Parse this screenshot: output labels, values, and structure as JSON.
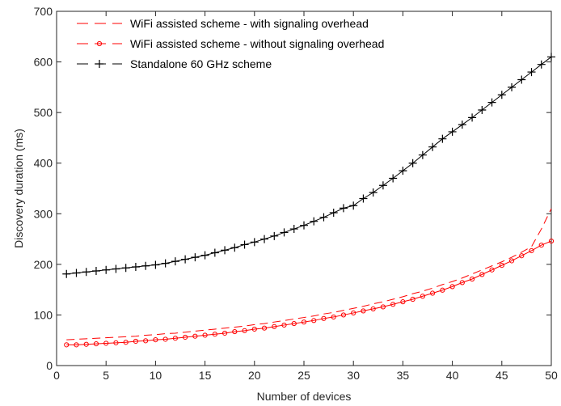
{
  "chart_data": {
    "type": "line",
    "xlabel": "Number of devices",
    "ylabel": "Discovery duration (ms)",
    "xlim": [
      0,
      50
    ],
    "ylim": [
      0,
      700
    ],
    "xticks": [
      0,
      5,
      10,
      15,
      20,
      25,
      30,
      35,
      40,
      45,
      50
    ],
    "yticks": [
      0,
      100,
      200,
      300,
      400,
      500,
      600,
      700
    ],
    "grid": false,
    "legend_position": "top-left",
    "series": [
      {
        "name": "WiFi assisted scheme - with signaling overhead",
        "color": "#ff0000",
        "line": "dashed",
        "marker": "none",
        "x": [
          1,
          2,
          3,
          4,
          5,
          6,
          7,
          8,
          9,
          10,
          11,
          12,
          13,
          14,
          15,
          16,
          17,
          18,
          19,
          20,
          21,
          22,
          23,
          24,
          25,
          26,
          27,
          28,
          29,
          30,
          31,
          32,
          33,
          34,
          35,
          36,
          37,
          38,
          39,
          40,
          41,
          42,
          43,
          44,
          45,
          46,
          47,
          48,
          49,
          50
        ],
        "y": [
          51,
          52,
          53,
          54,
          55,
          56,
          57,
          58,
          60,
          61,
          63,
          64,
          66,
          68,
          70,
          72,
          74,
          76,
          78,
          81,
          83,
          86,
          89,
          92,
          95,
          98,
          102,
          105,
          109,
          113,
          117,
          122,
          126,
          131,
          136,
          142,
          147,
          153,
          160,
          166,
          173,
          181,
          189,
          197,
          205,
          214,
          224,
          235,
          270,
          310
        ]
      },
      {
        "name": "WiFi assisted scheme - without signaling overhead",
        "color": "#ff0000",
        "line": "solid",
        "marker": "circle",
        "x": [
          1,
          2,
          3,
          4,
          5,
          6,
          7,
          8,
          9,
          10,
          11,
          12,
          13,
          14,
          15,
          16,
          17,
          18,
          19,
          20,
          21,
          22,
          23,
          24,
          25,
          26,
          27,
          28,
          29,
          30,
          31,
          32,
          33,
          34,
          35,
          36,
          37,
          38,
          39,
          40,
          41,
          42,
          43,
          44,
          45,
          46,
          47,
          48,
          49,
          50
        ],
        "y": [
          41,
          41,
          42,
          43,
          44,
          45,
          46,
          48,
          49,
          51,
          52,
          54,
          56,
          58,
          60,
          62,
          64,
          67,
          69,
          72,
          74,
          77,
          80,
          83,
          86,
          89,
          93,
          96,
          100,
          104,
          108,
          112,
          116,
          121,
          126,
          131,
          137,
          143,
          149,
          156,
          164,
          171,
          180,
          189,
          198,
          207,
          217,
          227,
          238,
          246
        ]
      },
      {
        "name": "Standalone 60 GHz scheme",
        "color": "#000000",
        "line": "solid",
        "marker": "plus",
        "x": [
          1,
          2,
          3,
          4,
          5,
          6,
          7,
          8,
          9,
          10,
          11,
          12,
          13,
          14,
          15,
          16,
          17,
          18,
          19,
          20,
          21,
          22,
          23,
          24,
          25,
          26,
          27,
          28,
          29,
          30,
          31,
          32,
          33,
          34,
          35,
          36,
          37,
          38,
          39,
          40,
          41,
          42,
          43,
          44,
          45,
          46,
          47,
          48,
          49,
          50
        ],
        "y": [
          181,
          183,
          185,
          187,
          189,
          191,
          193,
          195,
          197,
          199,
          202,
          206,
          210,
          214,
          218,
          223,
          228,
          233,
          239,
          244,
          250,
          256,
          263,
          270,
          277,
          285,
          293,
          302,
          311,
          316,
          330,
          342,
          356,
          370,
          385,
          400,
          416,
          432,
          448,
          462,
          476,
          490,
          505,
          520,
          535,
          550,
          565,
          580,
          595,
          610
        ]
      }
    ]
  }
}
